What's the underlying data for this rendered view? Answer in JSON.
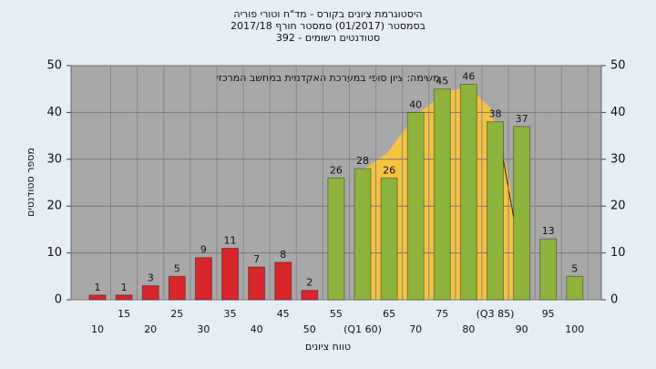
{
  "chart_data": {
    "type": "bar",
    "title": [
      "היסטוגרמת ציונים בקורס - מד\"ח וטורי פוריה",
      "בסמסטר (01/2017) סמסטר חורף 2017/18",
      "סטודנטים רשומים - 392"
    ],
    "annotation": "משימה: ציון סופי במערכת האקדמית במחשב המרכזי",
    "x_label": "טווח ציונים",
    "y_label": "מספר סטודנטים",
    "categories": [
      "10",
      "15",
      "20",
      "25",
      "30",
      "35",
      "40",
      "45",
      "50",
      "55",
      "(Q1 60)",
      "65",
      "70",
      "75",
      "80",
      "(Q3 85)",
      "90",
      "95",
      "100"
    ],
    "values": [
      1,
      1,
      3,
      5,
      9,
      11,
      7,
      8,
      2,
      26,
      28,
      26,
      40,
      45,
      46,
      38,
      37,
      13,
      5
    ],
    "colors": [
      "#d8262c",
      "#d8262c",
      "#d8262c",
      "#d8262c",
      "#d8262c",
      "#d8262c",
      "#d8262c",
      "#d8262c",
      "#d8262c",
      "#8db33c",
      "#8db33c",
      "#8db33c",
      "#8db33c",
      "#8db33c",
      "#8db33c",
      "#8db33c",
      "#8db33c",
      "#8db33c",
      "#8db33c"
    ],
    "ylim": [
      0,
      50
    ],
    "yticks": [
      0,
      10,
      20,
      30,
      40,
      50
    ],
    "y2lim": [
      0,
      50
    ],
    "y2ticks": [
      0,
      10,
      20,
      30,
      40,
      50
    ],
    "grid": true
  }
}
